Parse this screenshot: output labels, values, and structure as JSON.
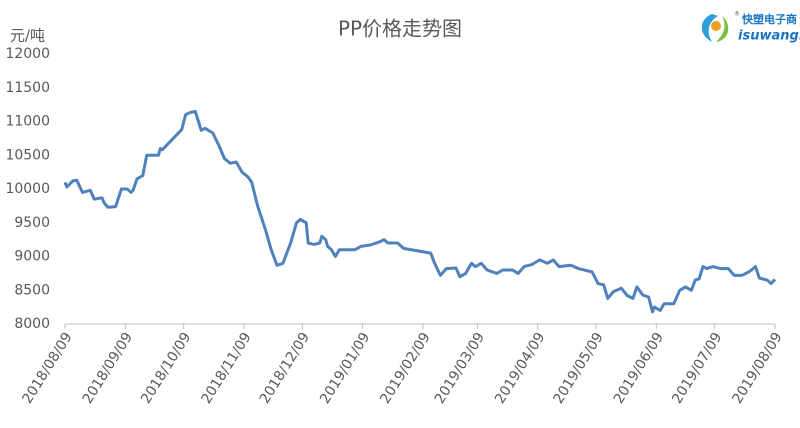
{
  "chart_data": {
    "type": "line",
    "title": "PP价格走势图",
    "y_label": "元/吨",
    "logo": {
      "brand": "快塑电子商",
      "site": "isuwang.co",
      "mark": "®"
    },
    "x": [
      "2018/08/09",
      "2018/08/10",
      "2018/08/13",
      "2018/08/15",
      "2018/08/18",
      "2018/08/22",
      "2018/08/24",
      "2018/08/28",
      "2018/08/29",
      "2018/08/31",
      "2018/09/04",
      "2018/09/07",
      "2018/09/10",
      "2018/09/12",
      "2018/09/13",
      "2018/09/15",
      "2018/09/18",
      "2018/09/20",
      "2018/09/26",
      "2018/09/27",
      "2018/09/28",
      "2018/10/08",
      "2018/10/10",
      "2018/10/12",
      "2018/10/15",
      "2018/10/18",
      "2018/10/20",
      "2018/10/24",
      "2018/10/27",
      "2018/10/30",
      "2018/11/02",
      "2018/11/05",
      "2018/11/08",
      "2018/11/11",
      "2018/11/13",
      "2018/11/16",
      "2018/11/20",
      "2018/11/23",
      "2018/11/26",
      "2018/11/29",
      "2018/12/03",
      "2018/12/06",
      "2018/12/08",
      "2018/12/11",
      "2018/12/12",
      "2018/12/15",
      "2018/12/18",
      "2018/12/19",
      "2018/12/21",
      "2018/12/22",
      "2018/12/24",
      "2018/12/26",
      "2018/12/28",
      "2019/01/05",
      "2019/01/08",
      "2019/01/13",
      "2019/01/16",
      "2019/01/18",
      "2019/01/20",
      "2019/01/22",
      "2019/01/27",
      "2019/01/30",
      "2019/02/13",
      "2019/02/15",
      "2019/02/18",
      "2019/02/21",
      "2019/02/26",
      "2019/02/28",
      "2019/03/03",
      "2019/03/06",
      "2019/03/08",
      "2019/03/11",
      "2019/03/14",
      "2019/03/19",
      "2019/03/22",
      "2019/03/27",
      "2019/03/30",
      "2019/04/02",
      "2019/04/06",
      "2019/04/10",
      "2019/04/14",
      "2019/04/17",
      "2019/04/20",
      "2019/04/26",
      "2019/04/30",
      "2019/05/07",
      "2019/05/10",
      "2019/05/13",
      "2019/05/15",
      "2019/05/18",
      "2019/05/22",
      "2019/05/25",
      "2019/05/28",
      "2019/05/30",
      "2019/06/02",
      "2019/06/05",
      "2019/06/07",
      "2019/06/08",
      "2019/06/11",
      "2019/06/13",
      "2019/06/18",
      "2019/06/21",
      "2019/06/24",
      "2019/06/27",
      "2019/06/29",
      "2019/07/01",
      "2019/07/03",
      "2019/07/05",
      "2019/07/08",
      "2019/07/12",
      "2019/07/16",
      "2019/07/19",
      "2019/07/23",
      "2019/07/27",
      "2019/07/30",
      "2019/08/01",
      "2019/08/05",
      "2019/08/07",
      "2019/08/09"
    ],
    "series": [
      {
        "name": "PP",
        "color": "#4f81bd",
        "values": [
          10100,
          10030,
          10120,
          10130,
          9950,
          9980,
          9850,
          9870,
          9800,
          9730,
          9740,
          10000,
          10000,
          9950,
          9980,
          10150,
          10200,
          10500,
          10500,
          10600,
          10580,
          10880,
          11100,
          11130,
          11150,
          10870,
          10900,
          10830,
          10650,
          10450,
          10380,
          10400,
          10250,
          10180,
          10100,
          9750,
          9400,
          9100,
          8870,
          8900,
          9200,
          9500,
          9550,
          9500,
          9200,
          9180,
          9200,
          9300,
          9250,
          9150,
          9100,
          9000,
          9100,
          9100,
          9150,
          9170,
          9200,
          9220,
          9250,
          9200,
          9200,
          9120,
          9050,
          8900,
          8720,
          8820,
          8830,
          8700,
          8750,
          8900,
          8850,
          8900,
          8800,
          8750,
          8800,
          8800,
          8750,
          8850,
          8880,
          8950,
          8900,
          8950,
          8850,
          8870,
          8820,
          8770,
          8600,
          8580,
          8380,
          8480,
          8530,
          8420,
          8380,
          8550,
          8430,
          8400,
          8180,
          8250,
          8200,
          8300,
          8300,
          8500,
          8550,
          8500,
          8650,
          8670,
          8850,
          8820,
          8850,
          8820,
          8820,
          8720,
          8720,
          8780,
          8850,
          8680,
          8650,
          8600,
          8660
        ]
      }
    ],
    "xlim": [
      "2018/08/09",
      "2019/08/09"
    ],
    "xticks": [
      "2018/08/09",
      "2018/09/09",
      "2018/10/09",
      "2018/11/09",
      "2018/12/09",
      "2019/01/09",
      "2019/02/09",
      "2019/03/09",
      "2019/04/09",
      "2019/05/09",
      "2019/06/09",
      "2019/07/09",
      "2019/08/09"
    ],
    "ylim": [
      8000,
      12000
    ],
    "yticks": [
      8000,
      8500,
      9000,
      9500,
      10000,
      10500,
      11000,
      11500,
      12000
    ],
    "grid": false
  }
}
